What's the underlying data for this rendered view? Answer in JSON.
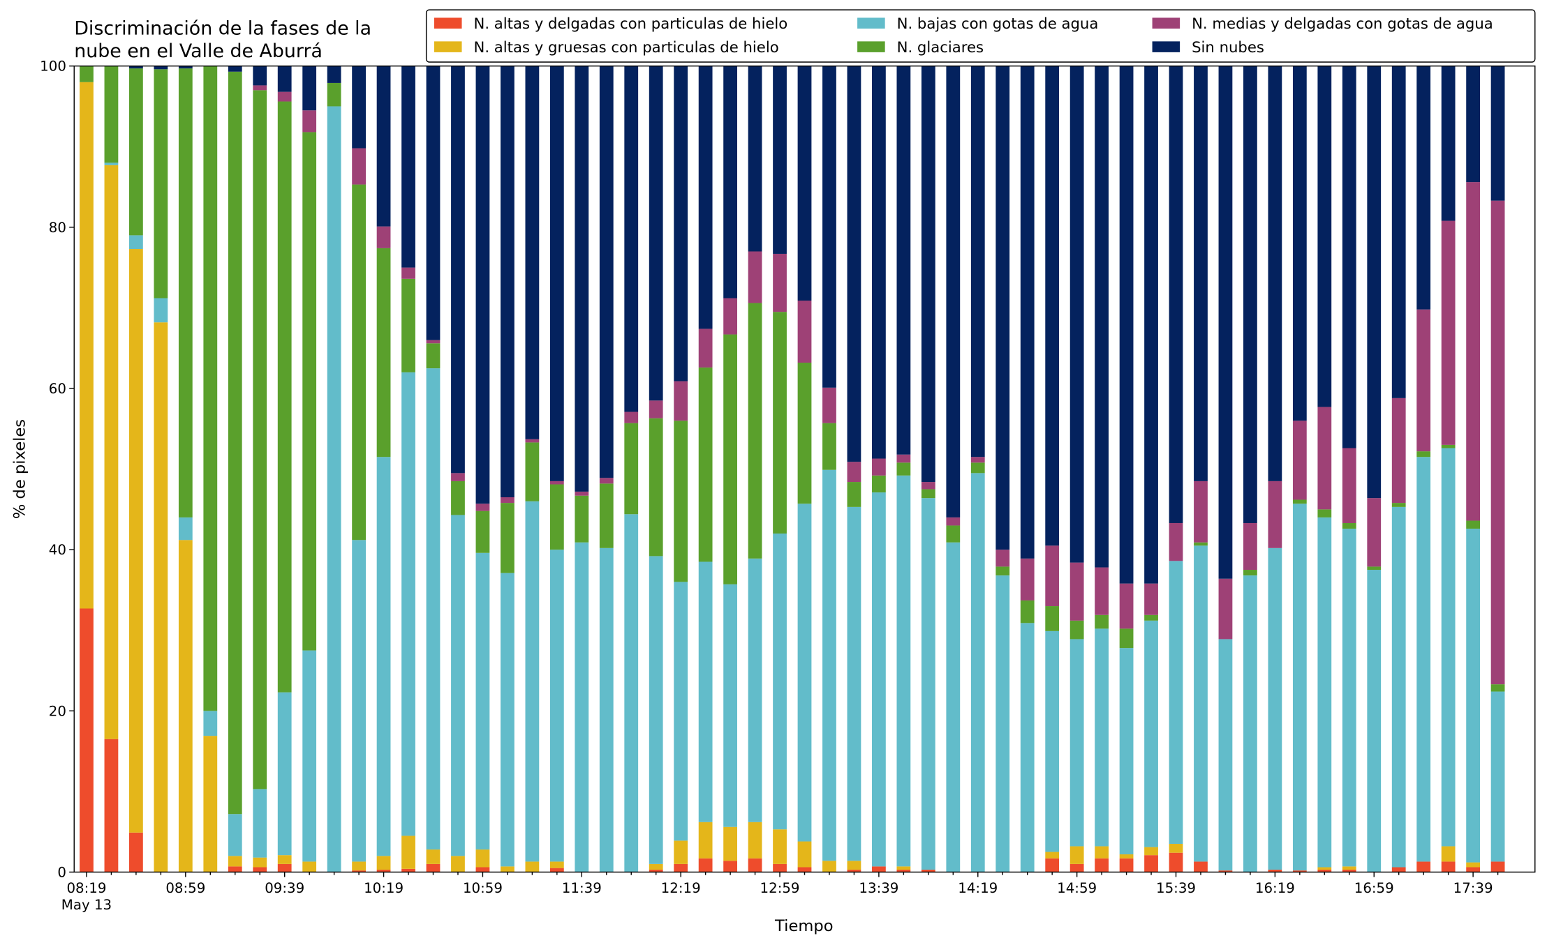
{
  "chart_data": {
    "type": "stacked_bar",
    "title": [
      "Discriminación de la fases de la",
      "nube en el Valle de Aburrá"
    ],
    "x_label": "Tiempo",
    "y_label": "% de pixeles",
    "x_date_label": "May 13",
    "categories": [
      "08:19",
      null,
      null,
      null,
      "08:59",
      null,
      null,
      null,
      "09:39",
      null,
      null,
      null,
      "10:19",
      null,
      null,
      null,
      "10:59",
      null,
      null,
      null,
      "11:39",
      null,
      null,
      null,
      "12:19",
      null,
      null,
      null,
      "12:59",
      null,
      null,
      null,
      "13:39",
      null,
      null,
      null,
      "14:19",
      null,
      null,
      null,
      "14:59",
      null,
      null,
      null,
      "15:39",
      null,
      null,
      null,
      "16:19",
      null,
      null,
      null,
      "16:59",
      null,
      null,
      null,
      "17:39",
      null
    ],
    "ylim": [
      0,
      100
    ],
    "yticks": [
      0,
      20,
      40,
      60,
      80,
      100
    ],
    "series": [
      {
        "name": "N. altas y delgadas con particulas de hielo",
        "color": "#ee4c2c",
        "values": [
          32.7,
          16.5,
          4.9,
          0,
          0,
          0,
          0.7,
          0.6,
          1,
          0,
          0,
          0.2,
          0.3,
          0.4,
          1,
          0,
          0.6,
          0,
          0,
          0.5,
          0,
          0,
          0,
          0.3,
          1,
          1.7,
          1.4,
          1.7,
          1,
          0.6,
          0,
          0.3,
          0.7,
          0.3,
          0.3,
          0,
          0,
          0,
          0,
          1.7,
          1,
          1.7,
          1.7,
          2.1,
          2.4,
          1.3,
          0.2,
          0,
          0.3,
          0.2,
          0.3,
          0.3,
          0,
          0.6,
          1.3,
          1.3,
          0.6,
          1.3
        ]
      },
      {
        "name": "N. altas y gruesas con particulas de hielo",
        "color": "#e4b61a",
        "values": [
          65.3,
          71.2,
          72.4,
          68.2,
          41.2,
          16.9,
          1.3,
          1.2,
          1.1,
          1.3,
          0,
          1.1,
          1.7,
          4.1,
          1.8,
          2,
          2.2,
          0.7,
          1.3,
          0.8,
          0,
          0,
          0,
          0.7,
          2.9,
          4.5,
          4.2,
          4.5,
          4.3,
          3.2,
          1.4,
          1.1,
          0,
          0.4,
          0,
          0,
          0,
          0,
          0,
          0.8,
          2.2,
          1.5,
          0.5,
          1,
          1.1,
          0,
          0,
          0,
          0,
          0,
          0.3,
          0.4,
          0,
          0,
          0,
          1.9,
          0.6,
          0
        ]
      },
      {
        "name": "N. bajas con gotas de agua",
        "color": "#62bcca",
        "values": [
          0,
          0.3,
          1.7,
          3,
          2.8,
          3.1,
          5.2,
          8.5,
          20.2,
          26.2,
          95,
          39.9,
          49.5,
          57.5,
          59.7,
          42.3,
          36.8,
          36.4,
          44.7,
          38.7,
          40.9,
          40.2,
          44.4,
          38.2,
          32.1,
          32.3,
          30.1,
          32.7,
          36.7,
          41.9,
          48.5,
          43.9,
          46.4,
          48.5,
          46.1,
          40.9,
          49.5,
          36.8,
          30.9,
          27.4,
          25.7,
          27,
          25.6,
          28.1,
          35.1,
          39.2,
          28.7,
          36.8,
          39.9,
          45.5,
          43.4,
          41.9,
          37.5,
          44.7,
          50.2,
          49.4,
          41.4,
          21.1
        ]
      },
      {
        "name": "N. glaciares",
        "color": "#5aa02c",
        "values": [
          2,
          12,
          20.7,
          28.4,
          55.7,
          80,
          92.1,
          86.7,
          73.3,
          64.3,
          2.9,
          44.1,
          25.9,
          11.6,
          3.1,
          4.2,
          5.2,
          8.7,
          7.3,
          8.1,
          5.8,
          8,
          11.3,
          17.1,
          20,
          24.1,
          31,
          31.7,
          27.5,
          17.5,
          5.8,
          3.1,
          2.1,
          1.6,
          1.1,
          2.1,
          1.3,
          1.1,
          2.8,
          3.1,
          2.3,
          1.7,
          2.4,
          0.7,
          0,
          0.4,
          0,
          0.7,
          0,
          0.5,
          1,
          0.7,
          0.4,
          0.5,
          0.7,
          0.4,
          1,
          0.9
        ]
      },
      {
        "name": "N. medias y delgadas con gotas de agua",
        "color": "#9e4176",
        "values": [
          0,
          0,
          0,
          0,
          0,
          0,
          0,
          0.6,
          1.2,
          2.7,
          0,
          4.5,
          2.7,
          1.4,
          0.4,
          1,
          0.9,
          0.7,
          0.4,
          0.4,
          0.5,
          0.7,
          1.4,
          2.2,
          4.9,
          4.8,
          4.5,
          6.4,
          7.2,
          7.7,
          4.4,
          2.5,
          2.1,
          1,
          0.9,
          1,
          0.7,
          2.1,
          5.2,
          7.5,
          7.2,
          5.9,
          5.6,
          3.9,
          4.7,
          7.6,
          7.5,
          5.8,
          8.3,
          9.8,
          12.7,
          9.3,
          8.5,
          13,
          17.6,
          27.8,
          42,
          60
        ]
      },
      {
        "name": "Sin nubes",
        "color": "#04225e",
        "values": [
          0,
          0,
          0.3,
          0.4,
          0.3,
          0,
          0.7,
          2.4,
          3.2,
          5.5,
          2.1,
          10.2,
          19.9,
          25,
          34,
          50.5,
          54.3,
          53.5,
          46.3,
          51.5,
          52.8,
          51.1,
          42.9,
          41.5,
          39.1,
          32.6,
          28.8,
          23,
          23.3,
          29.1,
          39.9,
          49.1,
          48.7,
          48.2,
          51.6,
          56,
          48.5,
          60,
          61.1,
          59.5,
          61.6,
          62.2,
          64.2,
          64.2,
          56.7,
          51.5,
          63.6,
          56.7,
          51.5,
          44,
          42.3,
          47.4,
          53.6,
          41.2,
          30.2,
          19.2,
          14.4,
          16.7
        ]
      }
    ]
  }
}
